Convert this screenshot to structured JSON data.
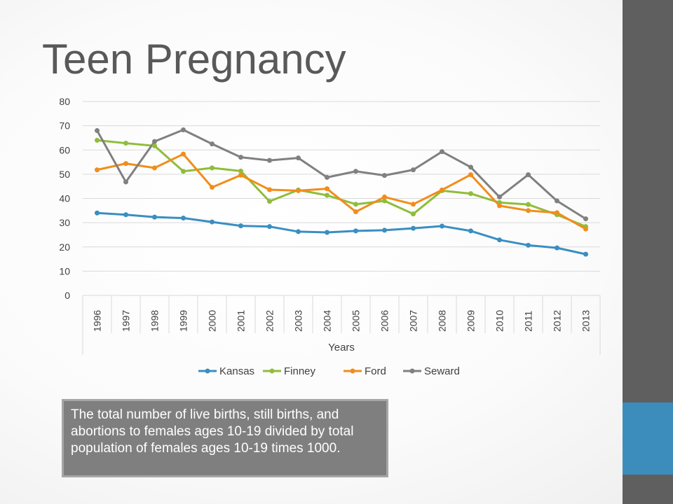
{
  "slide": {
    "title": "Teen Pregnancy",
    "note": "The total number of live births, still births, and abortions to females ages 10-19 divided by total population of females ages 10-19 times 1000."
  },
  "colors": {
    "accent_bar": "#3c8dbc",
    "side_bar": "#5f5f5f"
  },
  "chart_data": {
    "type": "line",
    "title": "",
    "xlabel": "Years",
    "ylabel": "",
    "ylim": [
      0,
      80
    ],
    "yticks": [
      0,
      10,
      20,
      30,
      40,
      50,
      60,
      70,
      80
    ],
    "grid": true,
    "legend": "bottom",
    "categories": [
      "1996",
      "1997",
      "1998",
      "1999",
      "2000",
      "2001",
      "2002",
      "2003",
      "2004",
      "2005",
      "2006",
      "2007",
      "2008",
      "2009",
      "2010",
      "2011",
      "2012",
      "2013"
    ],
    "series": [
      {
        "name": "Kansas",
        "color": "#3a8ec2",
        "values": [
          34,
          33.3,
          32.3,
          31.9,
          30.3,
          28.7,
          28.4,
          26.3,
          26.0,
          26.6,
          26.9,
          27.7,
          28.6,
          26.6,
          22.9,
          20.7,
          19.6,
          17.0
        ]
      },
      {
        "name": "Finney",
        "color": "#8fbd3a",
        "values": [
          64,
          62.8,
          61.7,
          51.2,
          52.6,
          51.3,
          38.8,
          43.5,
          41.3,
          37.6,
          39.0,
          33.6,
          43.2,
          42.0,
          38.3,
          37.5,
          33.3,
          28.4
        ]
      },
      {
        "name": "Ford",
        "color": "#f18d1c",
        "values": [
          51.8,
          54.4,
          52.6,
          58.3,
          44.6,
          49.6,
          43.6,
          43.2,
          44.0,
          34.5,
          40.6,
          37.6,
          43.5,
          49.8,
          37.0,
          35.0,
          34.1,
          27.4
        ]
      },
      {
        "name": "Seward",
        "color": "#808080",
        "values": [
          68,
          46.8,
          63.5,
          68.3,
          62.5,
          57.0,
          55.7,
          56.7,
          48.7,
          51.2,
          49.5,
          51.8,
          59.3,
          52.9,
          40.6,
          49.8,
          39.0,
          31.6
        ]
      }
    ]
  }
}
